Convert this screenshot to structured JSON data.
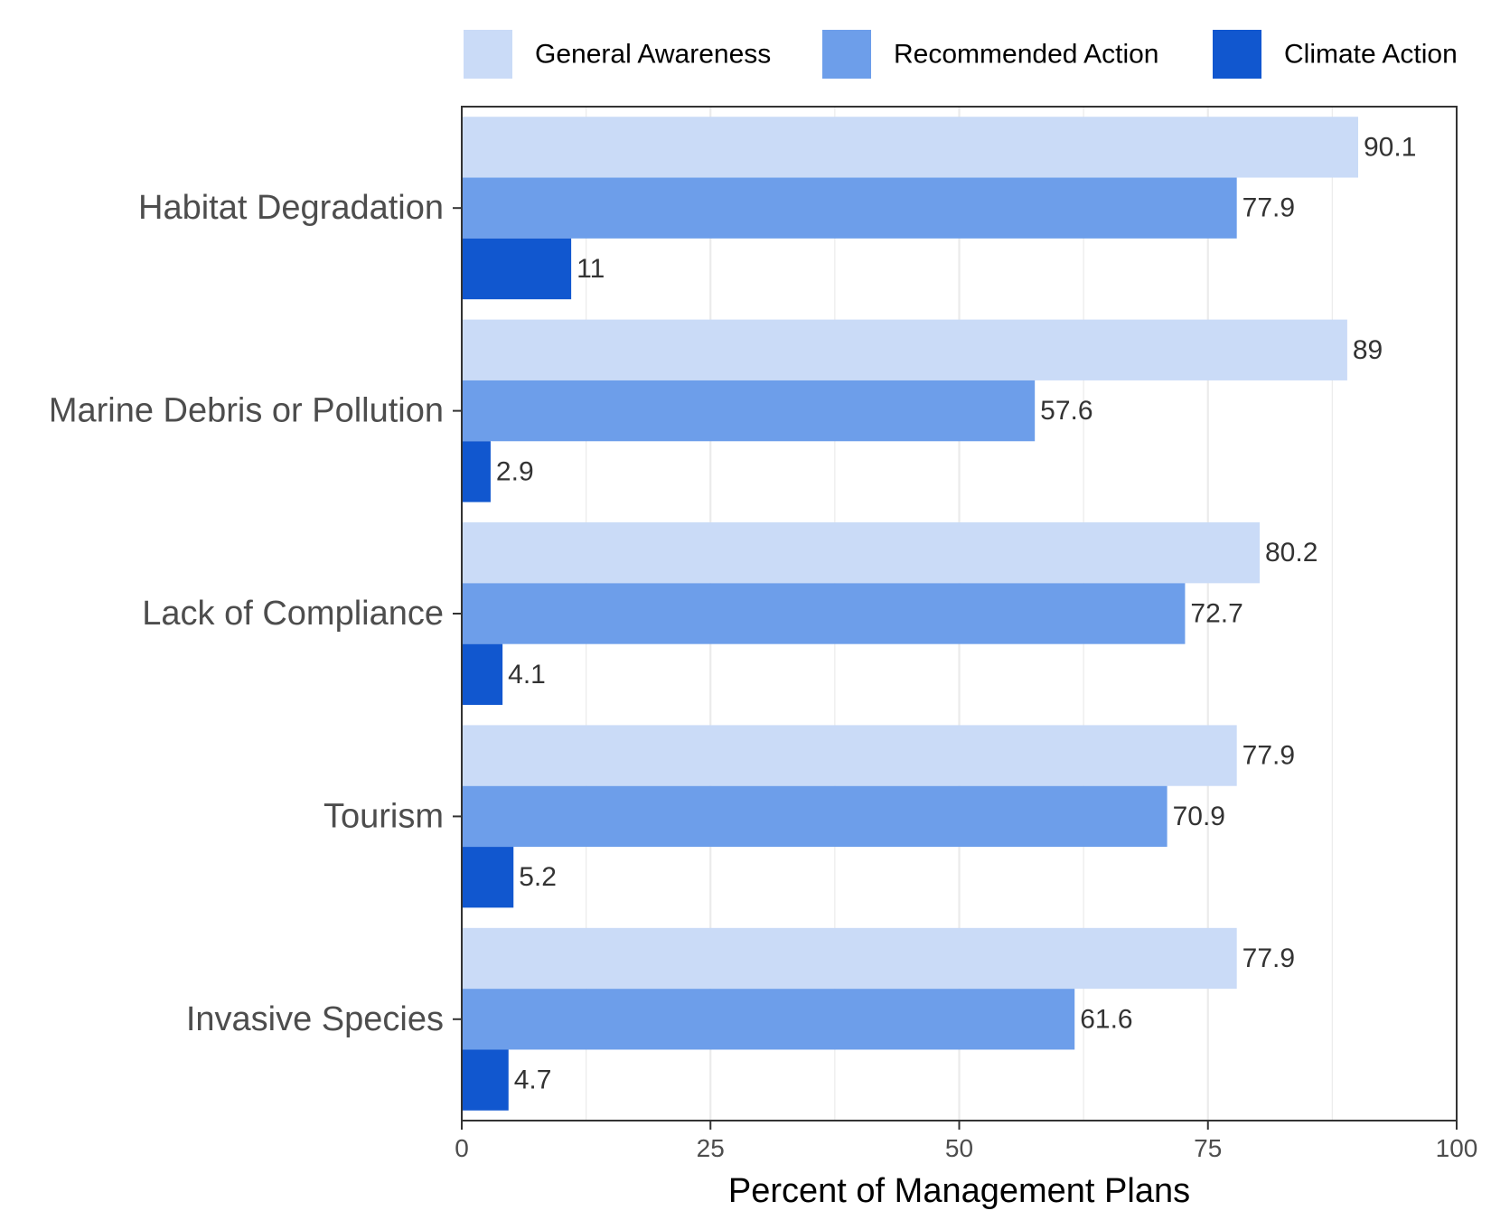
{
  "chart_data": {
    "type": "bar",
    "orientation": "horizontal",
    "categories": [
      "Habitat Degradation",
      "Marine Debris or Pollution",
      "Lack of Compliance",
      "Tourism",
      "Invasive Species"
    ],
    "series": [
      {
        "name": "General Awareness",
        "color": "#cadbf7",
        "values": [
          90.1,
          89,
          80.2,
          77.9,
          77.9
        ],
        "labels": [
          "90.1",
          "89",
          "80.2",
          "77.9",
          "77.9"
        ]
      },
      {
        "name": "Recommended Action",
        "color": "#6d9eea",
        "values": [
          77.9,
          57.6,
          72.7,
          70.9,
          61.6
        ],
        "labels": [
          "77.9",
          "57.6",
          "72.7",
          "70.9",
          "61.6"
        ]
      },
      {
        "name": "Climate Action",
        "color": "#1157cf",
        "values": [
          11,
          2.9,
          4.1,
          5.2,
          4.7
        ],
        "labels": [
          "11",
          "2.9",
          "4.1",
          "5.2",
          "4.7"
        ]
      }
    ],
    "xlabel": "Percent of Management Plans",
    "ylabel": "",
    "xlim": [
      0,
      100
    ],
    "xticks": [
      0,
      25,
      50,
      75,
      100
    ],
    "xtick_labels": [
      "0",
      "25",
      "50",
      "75",
      "100"
    ],
    "grid": true,
    "legend_position": "top"
  }
}
